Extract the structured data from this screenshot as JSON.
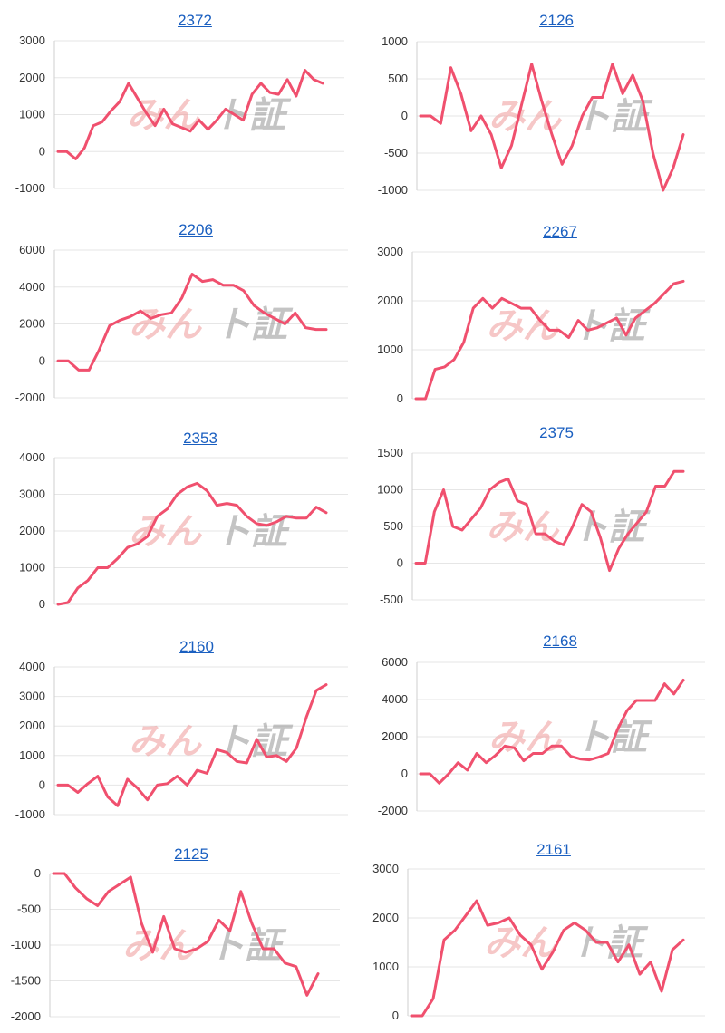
{
  "colors": {
    "line": "#f0506e",
    "title_link": "#1a5fc0",
    "watermark_pink": "#ef9a9a",
    "watermark_gray": "#9e9e9e"
  },
  "watermark": {
    "part1": "みん",
    "part2": "ト",
    "part3": "証"
  },
  "chart_data": [
    {
      "type": "line",
      "title": "2372",
      "ylim": [
        -1000,
        3000
      ],
      "yticks": [
        -1000,
        0,
        1000,
        2000,
        3000
      ],
      "series": [
        {
          "values": [
            0,
            0,
            -200,
            100,
            700,
            800,
            1100,
            1350,
            1850,
            1450,
            1050,
            700,
            1150,
            750,
            650,
            550,
            850,
            600,
            850,
            1150,
            1000,
            850,
            1550,
            1850,
            1600,
            1550,
            1950,
            1500,
            2200,
            1950,
            1850
          ]
        }
      ]
    },
    {
      "type": "line",
      "title": "2126",
      "ylim": [
        -1000,
        1000
      ],
      "yticks": [
        -1000,
        -500,
        0,
        500,
        1000
      ],
      "series": [
        {
          "values": [
            0,
            0,
            -100,
            650,
            300,
            -200,
            0,
            -250,
            -700,
            -400,
            150,
            700,
            200,
            -250,
            -650,
            -400,
            0,
            250,
            250,
            700,
            300,
            550,
            200,
            -500,
            -1000,
            -700,
            -250
          ]
        }
      ]
    },
    {
      "type": "line",
      "title": "2206",
      "ylim": [
        -2000,
        6000
      ],
      "yticks": [
        -2000,
        0,
        2000,
        4000,
        6000
      ],
      "series": [
        {
          "values": [
            0,
            0,
            -500,
            -500,
            600,
            1900,
            2200,
            2400,
            2700,
            2300,
            2500,
            2600,
            3400,
            4700,
            4300,
            4400,
            4100,
            4100,
            3800,
            3000,
            2600,
            2300,
            2000,
            2600,
            1800,
            1700,
            1700
          ]
        }
      ]
    },
    {
      "type": "line",
      "title": "2267",
      "ylim": [
        0,
        3000
      ],
      "yticks": [
        0,
        1000,
        2000,
        3000
      ],
      "series": [
        {
          "values": [
            0,
            0,
            600,
            650,
            800,
            1150,
            1850,
            2050,
            1850,
            2050,
            1950,
            1850,
            1850,
            1600,
            1400,
            1400,
            1250,
            1600,
            1400,
            1450,
            1550,
            1650,
            1300,
            1650,
            1800,
            1950,
            2150,
            2350,
            2400
          ]
        }
      ]
    },
    {
      "type": "line",
      "title": "2353",
      "ylim": [
        0,
        4000
      ],
      "yticks": [
        0,
        1000,
        2000,
        3000,
        4000
      ],
      "series": [
        {
          "values": [
            0,
            50,
            450,
            650,
            1000,
            1000,
            1250,
            1550,
            1650,
            1850,
            2400,
            2600,
            3000,
            3200,
            3300,
            3100,
            2700,
            2750,
            2700,
            2400,
            2200,
            2150,
            2250,
            2400,
            2350,
            2350,
            2650,
            2500
          ]
        }
      ]
    },
    {
      "type": "line",
      "title": "2375",
      "ylim": [
        -500,
        1500
      ],
      "yticks": [
        -500,
        0,
        500,
        1000,
        1500
      ],
      "series": [
        {
          "values": [
            0,
            0,
            700,
            1000,
            500,
            450,
            600,
            750,
            1000,
            1100,
            1150,
            850,
            800,
            400,
            400,
            300,
            250,
            500,
            800,
            700,
            350,
            -100,
            200,
            400,
            550,
            700,
            1050,
            1050,
            1250,
            1250
          ]
        }
      ]
    },
    {
      "type": "line",
      "title": "2160",
      "ylim": [
        -1000,
        4000
      ],
      "yticks": [
        -1000,
        0,
        1000,
        2000,
        3000,
        4000
      ],
      "series": [
        {
          "values": [
            0,
            0,
            -250,
            50,
            300,
            -400,
            -700,
            200,
            -100,
            -500,
            0,
            50,
            300,
            0,
            500,
            400,
            1200,
            1100,
            800,
            750,
            1550,
            950,
            1000,
            800,
            1250,
            2300,
            3200,
            3400
          ]
        }
      ]
    },
    {
      "type": "line",
      "title": "2168",
      "ylim": [
        -2000,
        6000
      ],
      "yticks": [
        -2000,
        0,
        2000,
        4000,
        6000
      ],
      "series": [
        {
          "values": [
            0,
            0,
            -500,
            0,
            600,
            200,
            1100,
            600,
            1000,
            1500,
            1400,
            700,
            1100,
            1100,
            1500,
            1500,
            950,
            800,
            750,
            900,
            1100,
            2400,
            3400,
            3950,
            3950,
            3950,
            4850,
            4300,
            5050
          ]
        }
      ]
    },
    {
      "type": "line",
      "title": "2125",
      "ylim": [
        -2000,
        0
      ],
      "yticks": [
        -2000,
        -1500,
        -1000,
        -500,
        0
      ],
      "series": [
        {
          "values": [
            0,
            0,
            -200,
            -350,
            -450,
            -250,
            -150,
            -50,
            -700,
            -1100,
            -600,
            -1050,
            -1100,
            -1050,
            -950,
            -650,
            -800,
            -250,
            -700,
            -1050,
            -1050,
            -1250,
            -1300,
            -1700,
            -1400
          ]
        }
      ]
    },
    {
      "type": "line",
      "title": "2161",
      "ylim": [
        0,
        3000
      ],
      "yticks": [
        0,
        1000,
        2000,
        3000
      ],
      "series": [
        {
          "values": [
            0,
            0,
            350,
            1550,
            1750,
            2050,
            2350,
            1850,
            1900,
            2000,
            1650,
            1450,
            950,
            1300,
            1750,
            1900,
            1750,
            1500,
            1500,
            1100,
            1450,
            850,
            1100,
            500,
            1350,
            1550
          ]
        }
      ]
    }
  ]
}
